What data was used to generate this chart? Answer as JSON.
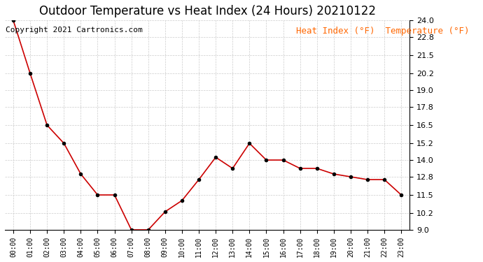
{
  "title": "Outdoor Temperature vs Heat Index (24 Hours) 20210122",
  "copyright_text": "Copyright 2021 Cartronics.com",
  "legend_heat_index": "Heat Index (°F)",
  "legend_temperature": "Temperature (°F)",
  "x_labels": [
    "00:00",
    "01:00",
    "02:00",
    "03:00",
    "04:00",
    "05:00",
    "06:00",
    "07:00",
    "08:00",
    "09:00",
    "10:00",
    "11:00",
    "12:00",
    "13:00",
    "14:00",
    "15:00",
    "16:00",
    "17:00",
    "18:00",
    "19:00",
    "20:00",
    "21:00",
    "22:00",
    "23:00"
  ],
  "temperature": [
    24.0,
    20.2,
    16.5,
    15.2,
    13.0,
    11.5,
    11.5,
    9.0,
    9.0,
    10.3,
    11.1,
    12.6,
    14.2,
    13.4,
    15.2,
    14.0,
    14.0,
    13.4,
    13.4,
    13.0,
    12.8,
    12.6,
    12.6,
    11.5
  ],
  "heat_index": [
    24.0,
    20.2,
    16.5,
    15.2,
    13.0,
    11.5,
    11.5,
    9.0,
    9.0,
    10.3,
    11.1,
    12.6,
    14.2,
    13.4,
    15.2,
    14.0,
    14.0,
    13.4,
    13.4,
    13.0,
    12.8,
    12.6,
    12.6,
    11.5
  ],
  "ylim": [
    9.0,
    24.0
  ],
  "yticks": [
    9.0,
    10.2,
    11.5,
    12.8,
    14.0,
    15.2,
    16.5,
    17.8,
    19.0,
    20.2,
    21.5,
    22.8,
    24.0
  ],
  "line_color": "#cc0000",
  "marker_color": "#000000",
  "legend_color": "#ff6600",
  "bg_color": "#ffffff",
  "grid_color": "#cccccc",
  "title_fontsize": 12,
  "legend_fontsize": 9,
  "copyright_fontsize": 8
}
